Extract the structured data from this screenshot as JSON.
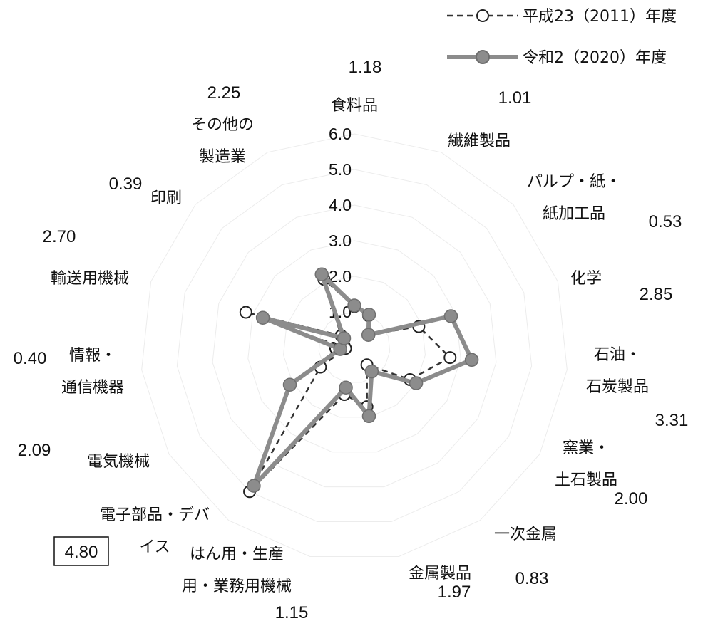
{
  "chart_data": {
    "type": "radar",
    "axis_range": [
      0,
      6
    ],
    "ticks": [
      "0.0",
      "1.0",
      "2.0",
      "3.0",
      "4.0",
      "5.0",
      "6.0"
    ],
    "categories": [
      "食料品",
      "繊維製品",
      "パルプ・紙・紙加工品",
      "化学",
      "石油・石炭製品",
      "窯業・土石製品",
      "一次金属",
      "金属製品",
      "はん用・生産用・業務用機械",
      "電子部品・デバイス",
      "電気機械",
      "情報・通信機器",
      "輸送用機械",
      "印刷",
      "その他の製造業"
    ],
    "category_label_lines": [
      [
        "食料品"
      ],
      [
        "繊維製品"
      ],
      [
        "パルプ・紙・",
        "紙加工品"
      ],
      [
        "化学"
      ],
      [
        "石油・",
        "石炭製品"
      ],
      [
        "窯業・",
        "土石製品"
      ],
      [
        "一次金属"
      ],
      [
        "金属製品"
      ],
      [
        "はん用・生産",
        "用・業務用機械"
      ],
      [
        "電子部品・デバ",
        "イス"
      ],
      [
        "電気機械"
      ],
      [
        "情報・",
        "通信機器"
      ],
      [
        "輸送用機械"
      ],
      [
        "印刷"
      ],
      [
        "その他の",
        "製造業"
      ]
    ],
    "value_labels": [
      "1.18",
      "1.01",
      "0.53",
      "2.85",
      "3.31",
      "2.00",
      "0.83",
      "1.97",
      "1.15",
      "4.80",
      "2.09",
      "0.40",
      "2.70",
      "0.39",
      "2.25"
    ],
    "highlighted_label": "4.80",
    "series": [
      {
        "name": "平成23（2011）年度",
        "style": "dashed-hollow",
        "color": "#333333",
        "values": [
          1.15,
          0.98,
          0.55,
          1.9,
          2.7,
          1.8,
          0.6,
          1.7,
          1.35,
          5.0,
          1.1,
          0.25,
          3.2,
          0.5,
          2.1
        ]
      },
      {
        "name": "令和2（2020）年度",
        "style": "solid-filled",
        "color": "#8c8c8c",
        "values": [
          1.18,
          1.01,
          0.53,
          2.85,
          3.31,
          2.0,
          0.83,
          1.97,
          1.15,
          4.8,
          2.09,
          0.4,
          2.7,
          0.39,
          2.25
        ]
      }
    ],
    "legend_position": "top-right"
  }
}
